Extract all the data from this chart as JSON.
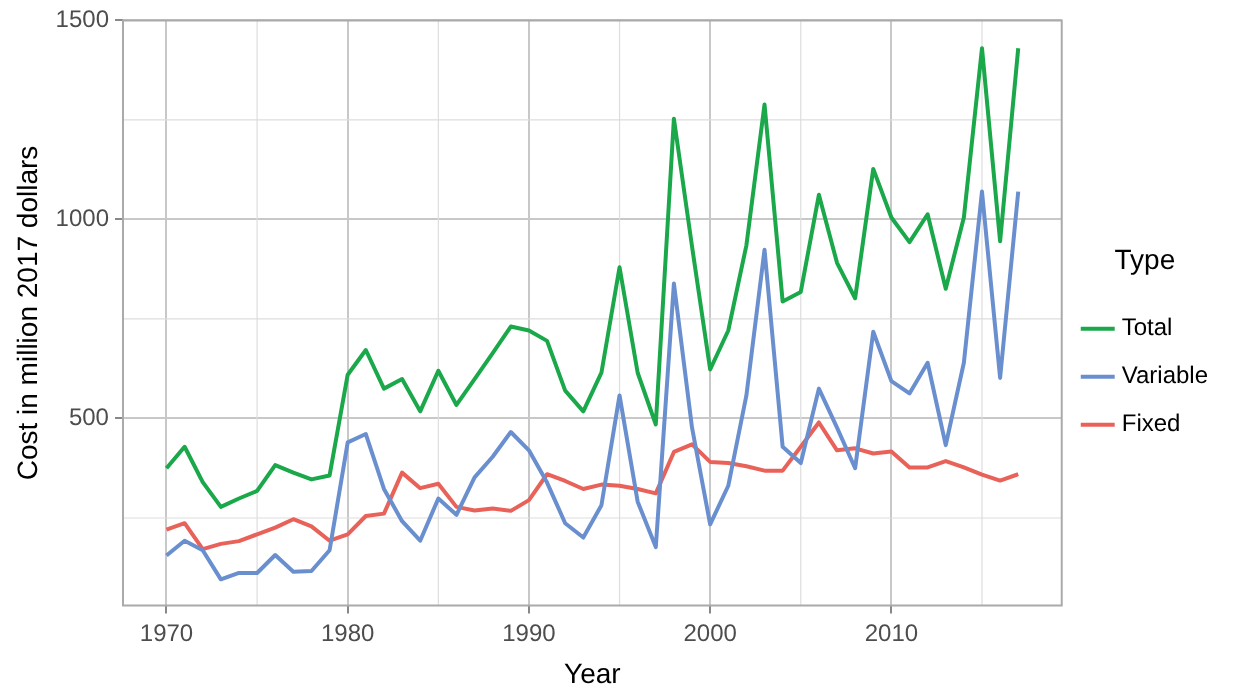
{
  "chart_data": {
    "type": "line",
    "xlabel": "Year",
    "ylabel": "Cost in million 2017 dollars",
    "legend_title": "Type",
    "legend": "right",
    "grid": true,
    "marker": "none",
    "line_style": "solid",
    "x": [
      1970,
      1971,
      1972,
      1973,
      1974,
      1975,
      1976,
      1977,
      1978,
      1979,
      1980,
      1981,
      1982,
      1983,
      1984,
      1985,
      1986,
      1987,
      1988,
      1989,
      1990,
      1991,
      1992,
      1993,
      1994,
      1995,
      1996,
      1997,
      1998,
      1999,
      2000,
      2001,
      2002,
      2003,
      2004,
      2005,
      2006,
      2007,
      2008,
      2009,
      2010,
      2011,
      2012,
      2013,
      2014,
      2015,
      2016,
      2017
    ],
    "xlim": [
      1967.6,
      2019.4
    ],
    "xticks": [
      1970,
      1980,
      1990,
      2000,
      2010
    ],
    "ylim": [
      30,
      1500
    ],
    "yticks": [
      500,
      1000,
      1500
    ],
    "series": [
      {
        "name": "Total",
        "color": "#1aa84a",
        "values": [
          375,
          429,
          340,
          278,
          299,
          318,
          383,
          364,
          347,
          357,
          610,
          672,
          575,
          599,
          518,
          620,
          534,
          599,
          664,
          731,
          721,
          695,
          570,
          518,
          615,
          880,
          615,
          485,
          1253,
          932,
          623,
          721,
          935,
          1289,
          794,
          818,
          1062,
          891,
          802,
          1127,
          1005,
          943,
          1013,
          826,
          1005,
          1430,
          945,
          1430
        ]
      },
      {
        "name": "Variable",
        "color": "#6a8fcf",
        "values": [
          156,
          193,
          169,
          96,
          112,
          112,
          157,
          115,
          117,
          169,
          440,
          461,
          323,
          242,
          193,
          299,
          258,
          352,
          404,
          466,
          420,
          339,
          237,
          201,
          282,
          558,
          291,
          177,
          839,
          477,
          234,
          331,
          558,
          924,
          429,
          388,
          575,
          477,
          375,
          718,
          594,
          563,
          640,
          433,
          640,
          1070,
          602,
          1070
        ]
      },
      {
        "name": "Fixed",
        "color": "#e8625a",
        "values": [
          221,
          237,
          172,
          185,
          192,
          209,
          226,
          247,
          229,
          193,
          209,
          255,
          261,
          364,
          325,
          336,
          278,
          269,
          274,
          268,
          295,
          360,
          343,
          323,
          334,
          331,
          323,
          312,
          416,
          435,
          391,
          388,
          380,
          369,
          369,
          429,
          490,
          420,
          425,
          412,
          417,
          377,
          377,
          393,
          377,
          359,
          344,
          360
        ]
      }
    ]
  }
}
